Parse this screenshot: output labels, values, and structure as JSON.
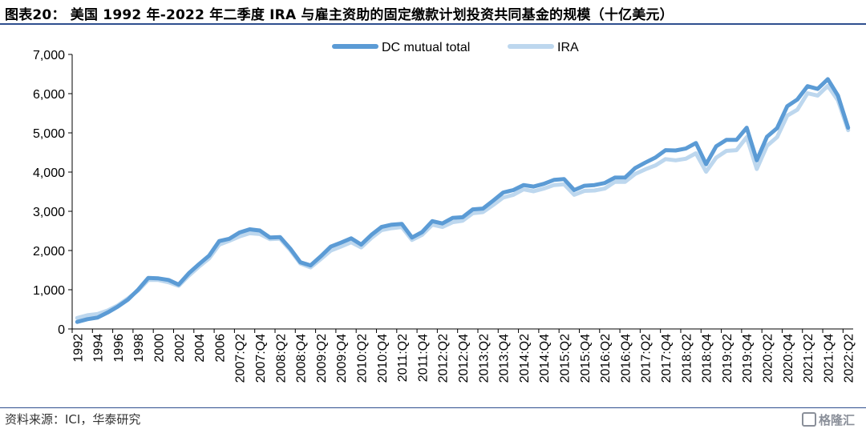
{
  "title": "图表20： 美国 1992 年-2022 年二季度 IRA 与雇主资助的固定缴款计划投资共同基金的规模（十亿美元）",
  "source": "资料来源：ICI，华泰研究",
  "watermark": "格隆汇",
  "colors": {
    "dc": "#5b9bd5",
    "ira": "#bdd7ee",
    "rule": "#2f4f8f"
  },
  "chart_data": {
    "type": "line",
    "title": "",
    "xlabel": "",
    "ylabel": "",
    "ylim": [
      0,
      7000
    ],
    "yticks": [
      0,
      1000,
      2000,
      3000,
      4000,
      5000,
      6000,
      7000
    ],
    "ytick_labels": [
      "0",
      "1,000",
      "2,000",
      "3,000",
      "4,000",
      "5,000",
      "6,000",
      "7,000"
    ],
    "xtick_labels": [
      "1992",
      "1994",
      "1996",
      "1998",
      "2000",
      "2002",
      "2004",
      "2006",
      "2007:Q2",
      "2007:Q4",
      "2008:Q2",
      "2008:Q4",
      "2009:Q2",
      "2009:Q4",
      "2010:Q2",
      "2010:Q4",
      "2011:Q2",
      "2011:Q4",
      "2012:Q2",
      "2012:Q4",
      "2013:Q2",
      "2013:Q4",
      "2014:Q2",
      "2014:Q4",
      "2015:Q2",
      "2015:Q4",
      "2016:Q2",
      "2016:Q4",
      "2017:Q2",
      "2017:Q4",
      "2018:Q2",
      "2018:Q4",
      "2019:Q2",
      "2019:Q4",
      "2020:Q2",
      "2020:Q4",
      "2021:Q2",
      "2021:Q4",
      "2022:Q2"
    ],
    "x": [
      "1992",
      "1993",
      "1994",
      "1995",
      "1996",
      "1997",
      "1998",
      "1999",
      "2000",
      "2001",
      "2002",
      "2003",
      "2004",
      "2005",
      "2006",
      "2007:Q1",
      "2007:Q2",
      "2007:Q3",
      "2007:Q4",
      "2008:Q1",
      "2008:Q2",
      "2008:Q3",
      "2008:Q4",
      "2009:Q1",
      "2009:Q2",
      "2009:Q3",
      "2009:Q4",
      "2010:Q1",
      "2010:Q2",
      "2010:Q3",
      "2010:Q4",
      "2011:Q1",
      "2011:Q2",
      "2011:Q3",
      "2011:Q4",
      "2012:Q1",
      "2012:Q2",
      "2012:Q3",
      "2012:Q4",
      "2013:Q1",
      "2013:Q2",
      "2013:Q3",
      "2013:Q4",
      "2014:Q1",
      "2014:Q2",
      "2014:Q3",
      "2014:Q4",
      "2015:Q1",
      "2015:Q2",
      "2015:Q3",
      "2015:Q4",
      "2016:Q1",
      "2016:Q2",
      "2016:Q3",
      "2016:Q4",
      "2017:Q1",
      "2017:Q2",
      "2017:Q3",
      "2017:Q4",
      "2018:Q1",
      "2018:Q2",
      "2018:Q3",
      "2018:Q4",
      "2019:Q1",
      "2019:Q2",
      "2019:Q3",
      "2019:Q4",
      "2020:Q1",
      "2020:Q2",
      "2020:Q3",
      "2020:Q4",
      "2021:Q1",
      "2021:Q2",
      "2021:Q3",
      "2021:Q4",
      "2022:Q1",
      "2022:Q2"
    ],
    "legend_position": "top-center",
    "series": [
      {
        "name": "DC mutual total",
        "color": "#5b9bd5",
        "values": [
          180,
          250,
          290,
          420,
          570,
          750,
          1000,
          1300,
          1290,
          1250,
          1130,
          1420,
          1650,
          1870,
          2240,
          2300,
          2460,
          2540,
          2510,
          2330,
          2340,
          2050,
          1700,
          1620,
          1850,
          2100,
          2200,
          2310,
          2150,
          2400,
          2600,
          2660,
          2680,
          2330,
          2470,
          2750,
          2690,
          2830,
          2850,
          3050,
          3070,
          3270,
          3480,
          3540,
          3670,
          3630,
          3700,
          3800,
          3820,
          3540,
          3650,
          3670,
          3720,
          3860,
          3860,
          4100,
          4240,
          4370,
          4560,
          4550,
          4600,
          4740,
          4200,
          4660,
          4820,
          4820,
          5130,
          4300,
          4900,
          5120,
          5680,
          5850,
          6190,
          6120,
          6370,
          5950,
          5130
        ]
      },
      {
        "name": "IRA",
        "color": "#bdd7ee",
        "values": [
          280,
          350,
          380,
          470,
          600,
          780,
          980,
          1250,
          1250,
          1190,
          1100,
          1360,
          1590,
          1800,
          2150,
          2250,
          2360,
          2440,
          2420,
          2290,
          2300,
          2010,
          1670,
          1570,
          1780,
          2000,
          2100,
          2210,
          2080,
          2320,
          2520,
          2570,
          2600,
          2270,
          2400,
          2660,
          2600,
          2720,
          2760,
          2950,
          2980,
          3160,
          3350,
          3420,
          3560,
          3510,
          3580,
          3670,
          3690,
          3420,
          3520,
          3530,
          3580,
          3750,
          3750,
          3950,
          4070,
          4170,
          4330,
          4300,
          4340,
          4480,
          4010,
          4370,
          4540,
          4560,
          4890,
          4080,
          4670,
          4890,
          5440,
          5590,
          6010,
          5950,
          6200,
          5830,
          5070
        ]
      }
    ]
  }
}
